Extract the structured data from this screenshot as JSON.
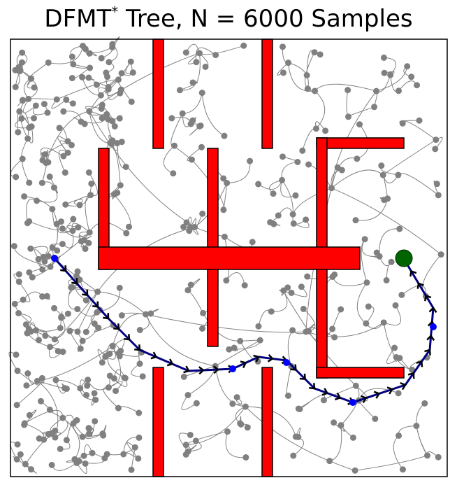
{
  "title": {
    "main": "DFMT",
    "sup": "*",
    "rest": " Tree, N = 6000 Samples"
  }
}
